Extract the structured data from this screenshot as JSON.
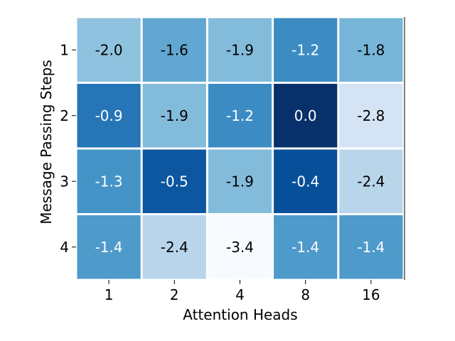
{
  "chart_data": {
    "type": "heatmap",
    "title": "",
    "xlabel": "Attention Heads",
    "ylabel": "Message Passing Steps",
    "x_categories": [
      "1",
      "2",
      "4",
      "8",
      "16"
    ],
    "y_categories": [
      "1",
      "2",
      "3",
      "4"
    ],
    "values": [
      [
        -2.0,
        -1.6,
        -1.9,
        -1.2,
        -1.8
      ],
      [
        -0.9,
        -1.9,
        -1.2,
        0.0,
        -2.8
      ],
      [
        -1.3,
        -0.5,
        -1.9,
        -0.4,
        -2.4
      ],
      [
        -1.4,
        -2.4,
        -3.4,
        -1.4,
        -1.4
      ]
    ],
    "cell_labels": [
      [
        "-2.0",
        "-1.6",
        "-1.9",
        "-1.2",
        "-1.8"
      ],
      [
        "-0.9",
        "-1.9",
        "-1.2",
        "0.0",
        "-2.8"
      ],
      [
        "-1.3",
        "-0.5",
        "-1.9",
        "-0.4",
        "-2.4"
      ],
      [
        "-1.4",
        "-2.4",
        "-3.4",
        "-1.4",
        "-1.4"
      ]
    ],
    "colormap": "Blues",
    "value_range": [
      -3.4,
      0.0
    ],
    "grid": false,
    "legend": "none"
  }
}
